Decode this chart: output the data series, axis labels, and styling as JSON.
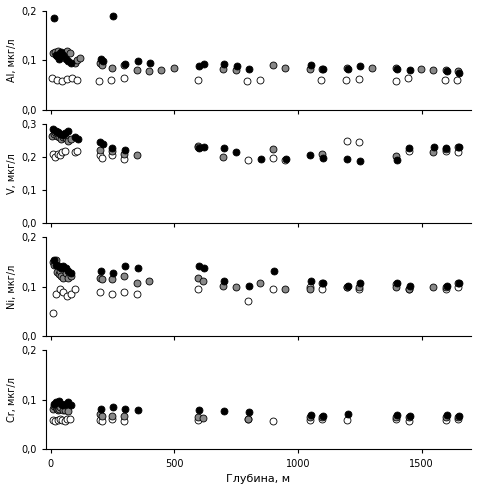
{
  "Al": {
    "south_x": [
      5,
      25,
      45,
      65,
      85,
      105,
      195,
      245,
      295,
      595,
      795,
      845,
      1095,
      1195,
      1245,
      1395,
      1445,
      1595,
      1645
    ],
    "south_y": [
      0.065,
      0.06,
      0.058,
      0.062,
      0.065,
      0.06,
      0.058,
      0.06,
      0.065,
      0.06,
      0.058,
      0.06,
      0.06,
      0.06,
      0.062,
      0.058,
      0.065,
      0.06,
      0.06
    ],
    "mid_x": [
      8,
      18,
      28,
      38,
      48,
      58,
      68,
      78,
      98,
      108,
      118,
      198,
      208,
      248,
      298,
      348,
      398,
      448,
      498,
      698,
      748,
      898,
      948,
      1048,
      1098,
      1198,
      1298,
      1398,
      1498,
      1548,
      1598,
      1648
    ],
    "mid_y": [
      0.115,
      0.118,
      0.12,
      0.115,
      0.11,
      0.115,
      0.12,
      0.115,
      0.095,
      0.1,
      0.105,
      0.095,
      0.09,
      0.085,
      0.09,
      0.08,
      0.078,
      0.08,
      0.085,
      0.082,
      0.08,
      0.09,
      0.085,
      0.082,
      0.082,
      0.085,
      0.085,
      0.085,
      0.082,
      0.08,
      0.08,
      0.078
    ],
    "north_x": [
      12,
      22,
      27,
      32,
      37,
      42,
      52,
      62,
      72,
      82,
      202,
      212,
      252,
      302,
      352,
      402,
      602,
      622,
      702,
      752,
      802,
      1052,
      1102,
      1202,
      1252,
      1402,
      1452,
      1602,
      1652
    ],
    "north_y": [
      0.185,
      0.112,
      0.108,
      0.102,
      0.108,
      0.118,
      0.112,
      0.102,
      0.098,
      0.095,
      0.102,
      0.098,
      0.19,
      0.092,
      0.098,
      0.095,
      0.088,
      0.092,
      0.092,
      0.088,
      0.082,
      0.09,
      0.082,
      0.082,
      0.088,
      0.082,
      0.08,
      0.078,
      0.075
    ],
    "ylabel": "Al, мкг/л",
    "ylim": [
      0,
      0.2
    ],
    "yticks": [
      0,
      0.1,
      0.2
    ]
  },
  "V": {
    "south_x": [
      8,
      18,
      28,
      38,
      48,
      58,
      98,
      108,
      198,
      208,
      248,
      298,
      598,
      798,
      898,
      948,
      1198,
      1248,
      1448,
      1598,
      1648
    ],
    "south_y": [
      0.21,
      0.2,
      0.21,
      0.205,
      0.215,
      0.218,
      0.215,
      0.22,
      0.205,
      0.198,
      0.205,
      0.195,
      0.235,
      0.192,
      0.198,
      0.19,
      0.248,
      0.245,
      0.22,
      0.218,
      0.215
    ],
    "mid_x": [
      5,
      12,
      18,
      24,
      30,
      36,
      42,
      52,
      62,
      72,
      82,
      198,
      248,
      298,
      348,
      598,
      698,
      898,
      1098,
      1398,
      1548,
      1598,
      1648
    ],
    "mid_y": [
      0.265,
      0.27,
      0.275,
      0.265,
      0.27,
      0.26,
      0.255,
      0.262,
      0.258,
      0.25,
      0.255,
      0.222,
      0.218,
      0.21,
      0.205,
      0.232,
      0.2,
      0.225,
      0.21,
      0.202,
      0.215,
      0.225,
      0.232
    ],
    "north_x": [
      10,
      20,
      30,
      40,
      50,
      60,
      70,
      100,
      110,
      200,
      210,
      250,
      300,
      600,
      620,
      700,
      750,
      850,
      950,
      1050,
      1100,
      1200,
      1250,
      1400,
      1450,
      1550,
      1600,
      1650
    ],
    "north_y": [
      0.285,
      0.28,
      0.275,
      0.27,
      0.268,
      0.272,
      0.278,
      0.262,
      0.255,
      0.245,
      0.24,
      0.228,
      0.222,
      0.228,
      0.232,
      0.228,
      0.215,
      0.195,
      0.195,
      0.205,
      0.198,
      0.195,
      0.188,
      0.19,
      0.228,
      0.232,
      0.228,
      0.232
    ],
    "ylabel": "V, мкг/л",
    "ylim": [
      0,
      0.3
    ],
    "yticks": [
      0,
      0.1,
      0.2,
      0.3
    ]
  },
  "Ni": {
    "south_x": [
      8,
      22,
      38,
      52,
      68,
      82,
      98,
      198,
      248,
      298,
      348,
      598,
      798,
      898,
      1048,
      1098,
      1198,
      1248,
      1398,
      1448,
      1598,
      1648
    ],
    "south_y": [
      0.048,
      0.085,
      0.095,
      0.09,
      0.082,
      0.085,
      0.095,
      0.09,
      0.085,
      0.09,
      0.085,
      0.095,
      0.072,
      0.095,
      0.1,
      0.095,
      0.1,
      0.095,
      0.105,
      0.095,
      0.095,
      0.1
    ],
    "mid_x": [
      8,
      14,
      20,
      26,
      32,
      38,
      44,
      52,
      62,
      72,
      82,
      198,
      208,
      248,
      298,
      348,
      398,
      598,
      618,
      698,
      748,
      848,
      948,
      1048,
      1098,
      1198,
      1248,
      1398,
      1448,
      1548,
      1598,
      1648
    ],
    "mid_y": [
      0.15,
      0.145,
      0.155,
      0.13,
      0.125,
      0.132,
      0.122,
      0.118,
      0.128,
      0.118,
      0.122,
      0.118,
      0.115,
      0.115,
      0.122,
      0.108,
      0.112,
      0.118,
      0.112,
      0.102,
      0.1,
      0.108,
      0.095,
      0.095,
      0.108,
      0.1,
      0.1,
      0.1,
      0.095,
      0.1,
      0.1,
      0.108
    ],
    "north_x": [
      12,
      22,
      32,
      42,
      52,
      62,
      72,
      82,
      202,
      252,
      302,
      352,
      602,
      622,
      702,
      802,
      902,
      1052,
      1102,
      1202,
      1252,
      1402,
      1452,
      1602,
      1652
    ],
    "north_y": [
      0.155,
      0.145,
      0.142,
      0.138,
      0.142,
      0.138,
      0.132,
      0.128,
      0.132,
      0.128,
      0.142,
      0.138,
      0.142,
      0.138,
      0.112,
      0.102,
      0.132,
      0.112,
      0.108,
      0.102,
      0.108,
      0.108,
      0.102,
      0.102,
      0.108
    ],
    "ylabel": "Ni, мкг/л",
    "ylim": [
      0,
      0.2
    ],
    "yticks": [
      0,
      0.1,
      0.2
    ]
  },
  "Cr": {
    "south_x": [
      8,
      18,
      28,
      38,
      48,
      58,
      68,
      78,
      198,
      208,
      248,
      298,
      598,
      798,
      898,
      1048,
      1098,
      1198,
      1398,
      1448,
      1598,
      1648
    ],
    "south_y": [
      0.06,
      0.058,
      0.06,
      0.062,
      0.06,
      0.058,
      0.062,
      0.062,
      0.06,
      0.058,
      0.062,
      0.058,
      0.06,
      0.062,
      0.058,
      0.06,
      0.062,
      0.06,
      0.062,
      0.058,
      0.06,
      0.062
    ],
    "mid_x": [
      10,
      15,
      20,
      25,
      30,
      35,
      40,
      50,
      60,
      70,
      198,
      208,
      248,
      298,
      598,
      618,
      798,
      1048,
      1098,
      1398,
      1448,
      1598,
      1648
    ],
    "mid_y": [
      0.082,
      0.088,
      0.085,
      0.082,
      0.08,
      0.082,
      0.085,
      0.08,
      0.08,
      0.078,
      0.072,
      0.068,
      0.068,
      0.068,
      0.065,
      0.063,
      0.062,
      0.065,
      0.065,
      0.065,
      0.065,
      0.065,
      0.065
    ],
    "north_x": [
      12,
      22,
      32,
      42,
      52,
      62,
      72,
      82,
      202,
      252,
      302,
      352,
      602,
      702,
      802,
      1052,
      1102,
      1202,
      1402,
      1452,
      1602,
      1652
    ],
    "north_y": [
      0.092,
      0.095,
      0.098,
      0.092,
      0.09,
      0.092,
      0.095,
      0.09,
      0.082,
      0.085,
      0.082,
      0.08,
      0.08,
      0.078,
      0.075,
      0.07,
      0.068,
      0.072,
      0.07,
      0.068,
      0.07,
      0.068
    ],
    "ylabel": "Cr, мкг/л",
    "ylim": [
      0,
      0.2
    ],
    "yticks": [
      0,
      0.1,
      0.2
    ]
  },
  "xlabel": "Глубина, м",
  "xlim": [
    -20,
    1700
  ],
  "xticks": [
    0,
    500,
    1000,
    1500
  ],
  "south_color": "white",
  "mid_color": "#888888",
  "north_color": "black",
  "marker_size": 5,
  "edgecolor": "black",
  "figure_width": 4.78,
  "figure_height": 4.91,
  "dpi": 100
}
